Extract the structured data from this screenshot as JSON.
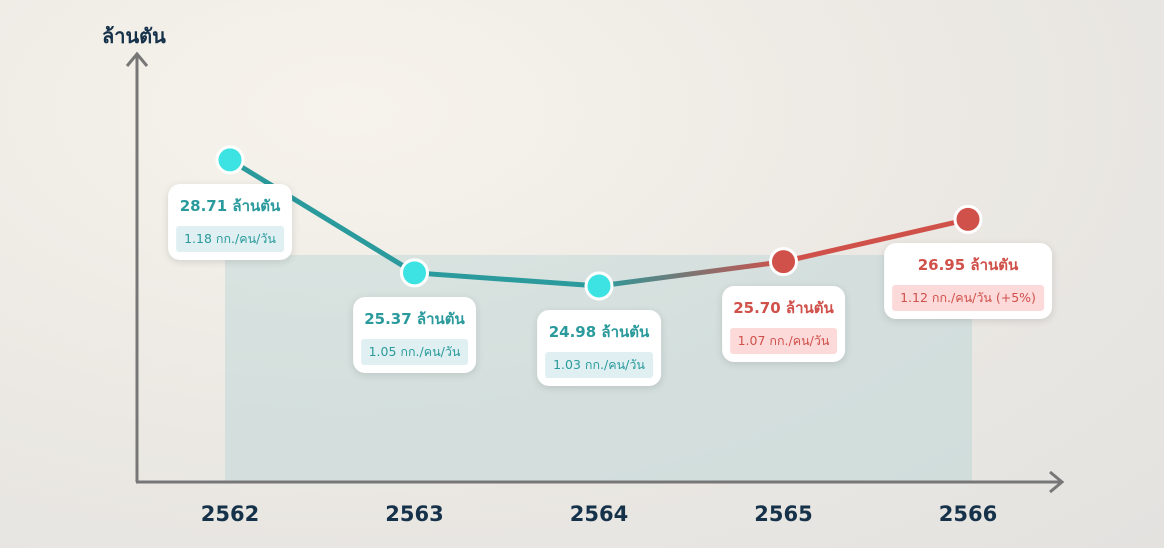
{
  "chart_data": {
    "type": "line",
    "ylabel": "ล้านตัน",
    "categories": [
      "2562",
      "2563",
      "2564",
      "2565",
      "2566"
    ],
    "values": [
      28.71,
      25.37,
      24.98,
      25.7,
      26.95
    ],
    "labels": [
      "28.71 ล้านตัน",
      "25.37 ล้านตัน",
      "24.98 ล้านตัน",
      "25.70 ล้านตัน",
      "26.95 ล้านตัน"
    ],
    "sublabels": [
      "1.18 กก./คน/วัน",
      "1.05 กก./คน/วัน",
      "1.03 กก./คน/วัน",
      "1.07 กก./คน/วัน",
      "1.12 กก./คน/วัน (+5%)"
    ],
    "trend": [
      "down",
      "down",
      "down",
      "up",
      "up"
    ],
    "grid": false,
    "colors": {
      "down": "#2a9a9c",
      "down_point": "#3de3e3",
      "up": "#d0504a",
      "down_bg": "#e0f0f2",
      "up_bg": "#fddada",
      "axis": "#777777",
      "text": "#16324a"
    }
  }
}
